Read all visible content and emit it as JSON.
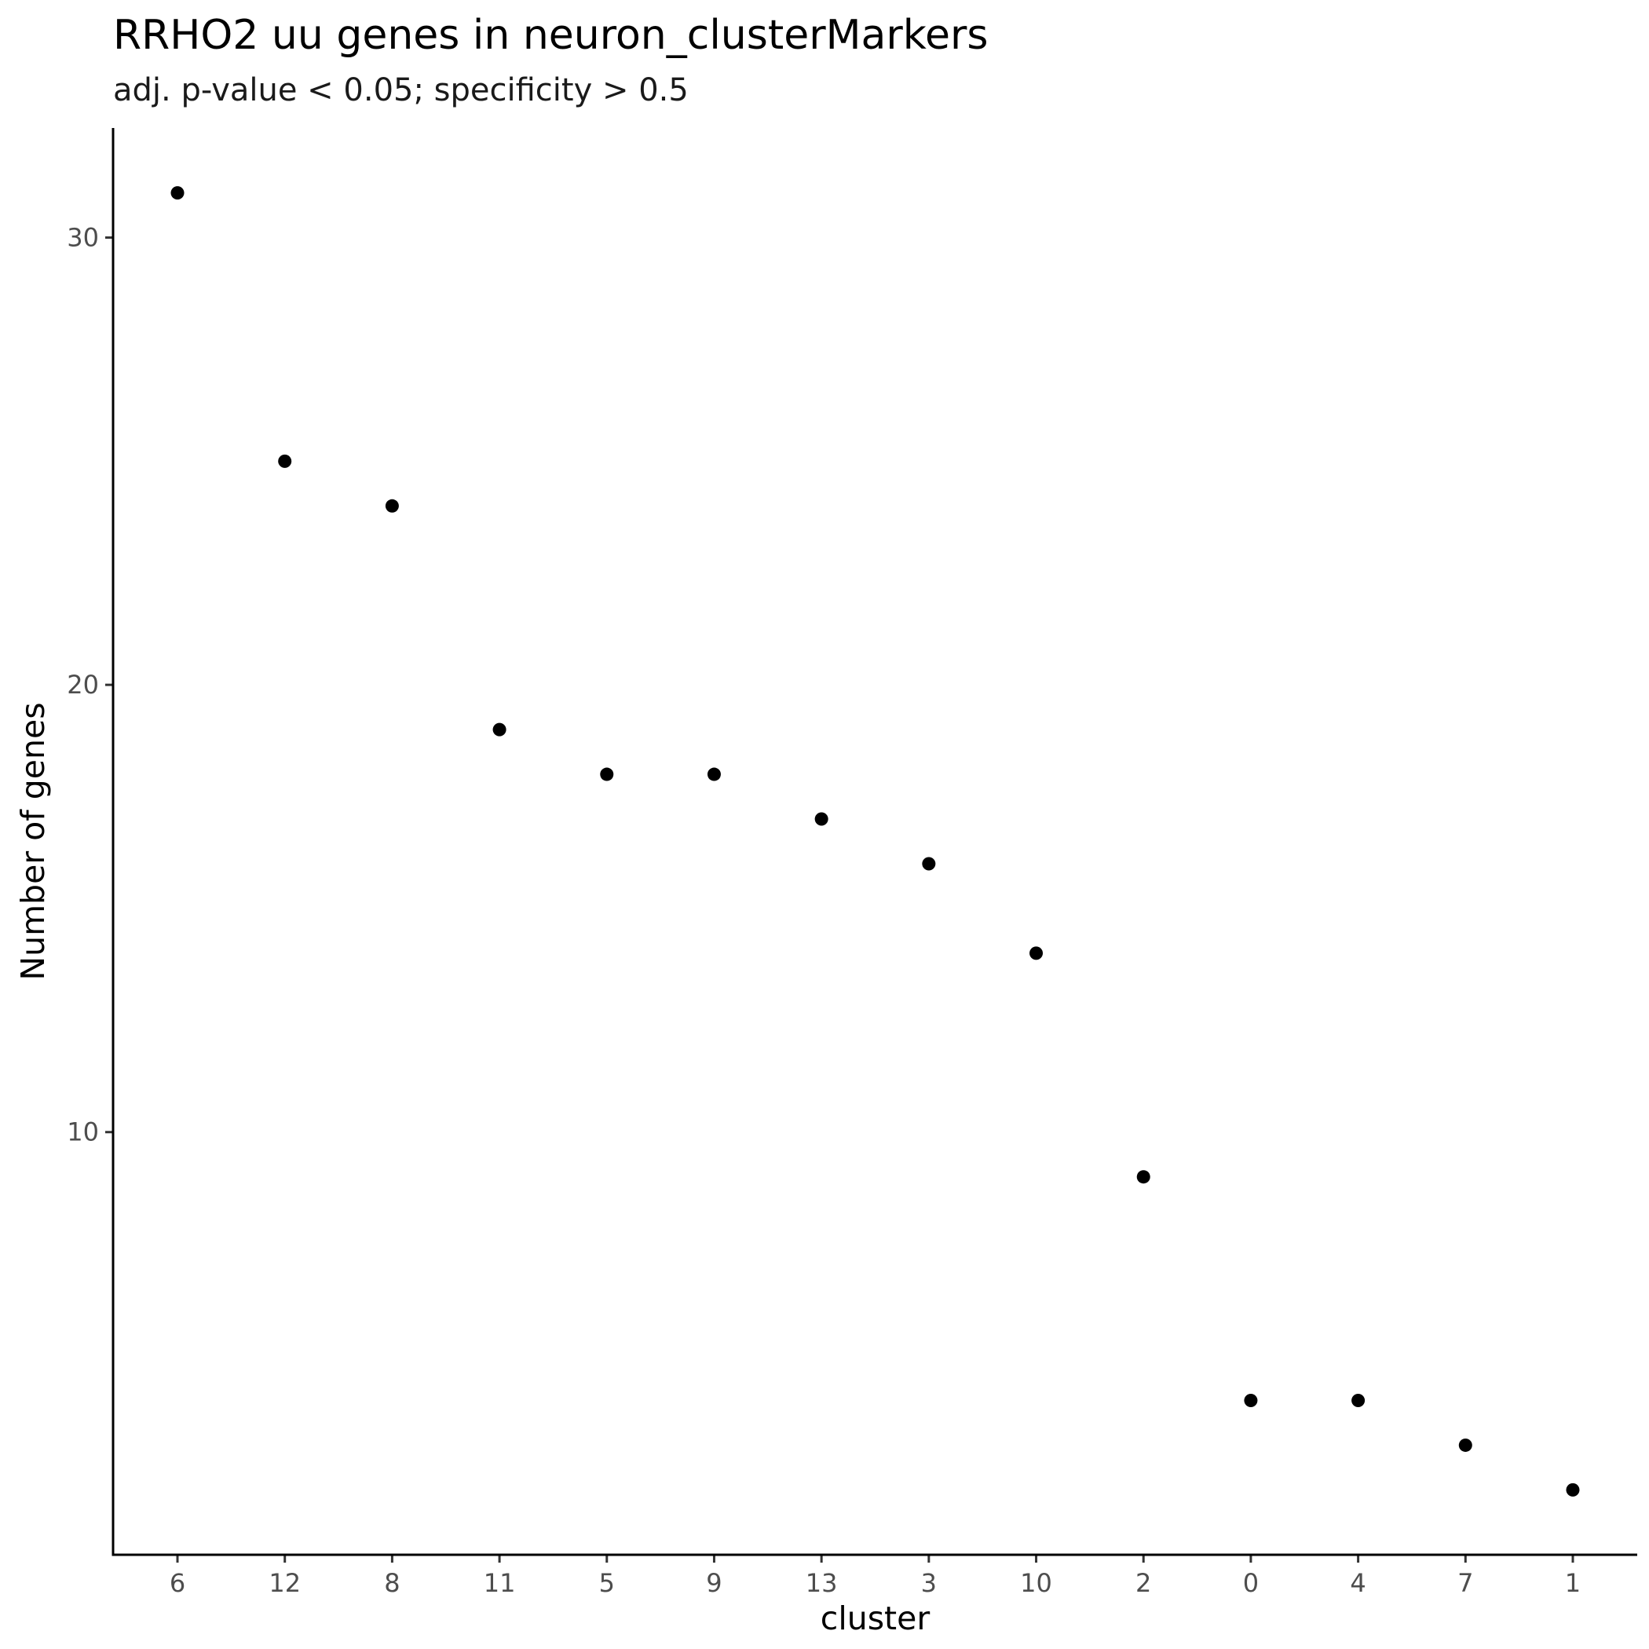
{
  "chart_data": {
    "type": "scatter",
    "title": "RRHO2 uu genes in neuron_clusterMarkers",
    "subtitle": "adj. p-value < 0.05; specificity > 0.5",
    "xlabel": "cluster",
    "ylabel": "Number of genes",
    "categories": [
      "6",
      "12",
      "8",
      "11",
      "5",
      "9",
      "13",
      "3",
      "10",
      "2",
      "0",
      "4",
      "7",
      "1"
    ],
    "values": [
      31,
      25,
      24,
      19,
      18,
      18,
      17,
      16,
      14,
      9,
      4,
      4,
      3,
      2
    ],
    "yticks": [
      10,
      20,
      30
    ],
    "ylim": [
      0.55,
      32.45
    ],
    "grid": false,
    "legend": "none",
    "point_color": "#000000"
  }
}
